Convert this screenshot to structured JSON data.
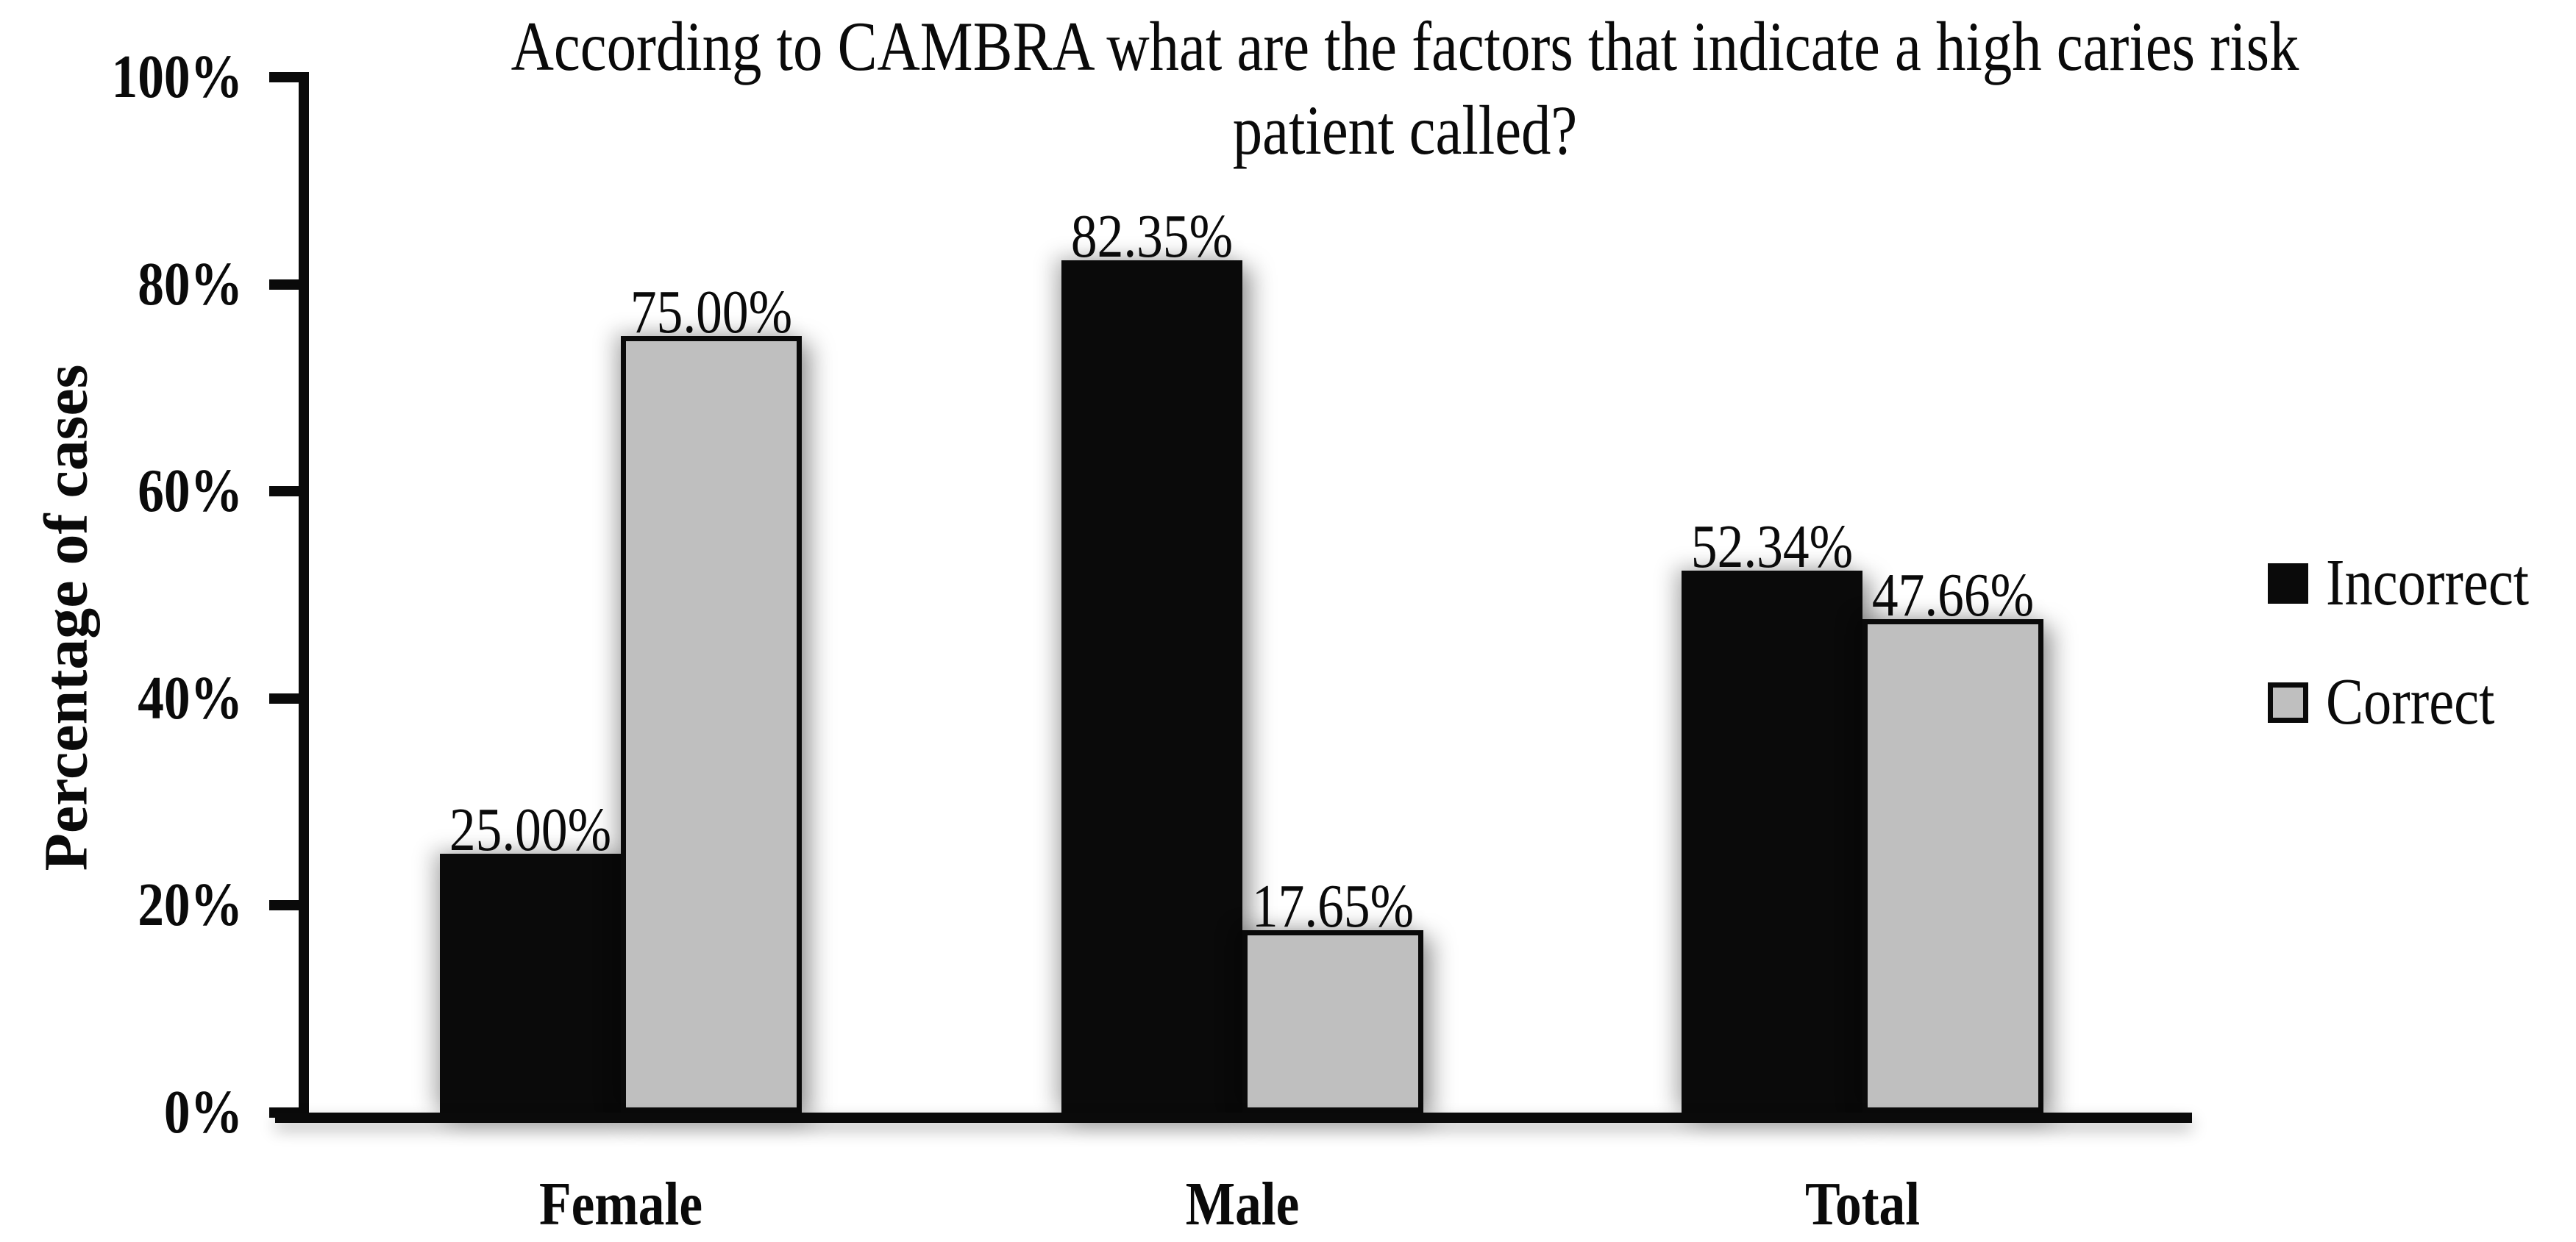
{
  "chart_data": {
    "type": "bar",
    "title": "According to CAMBRA what are the factors that indicate a high caries risk patient called?",
    "title_lines": [
      "According to CAMBRA what are the factors that indicate a high caries risk",
      "patient called?"
    ],
    "xlabel": "",
    "ylabel": "Percentage of cases",
    "categories": [
      "Female",
      "Male",
      "Total"
    ],
    "series": [
      {
        "name": "Incorrect",
        "color": "#0a0a0a",
        "values": [
          25.0,
          82.35,
          52.34
        ],
        "data_labels": [
          "25.00%",
          "82.35%",
          "52.34%"
        ]
      },
      {
        "name": "Correct",
        "color": "#bfbfbf",
        "values": [
          75.0,
          17.65,
          47.66
        ],
        "data_labels": [
          "75.00%",
          "17.65%",
          "47.66%"
        ]
      }
    ],
    "yticks": {
      "values": [
        0,
        20,
        40,
        60,
        80,
        100
      ],
      "labels": [
        "0%",
        "20%",
        "40%",
        "60%",
        "80%",
        "100%"
      ]
    },
    "ylim": [
      0,
      100
    ],
    "grid": false,
    "legend_position": "right",
    "colors": {
      "incorrect": "#0a0a0a",
      "correct_fill": "#bfbfbf",
      "axis": "#0a0a0a",
      "background": "#ffffff"
    }
  }
}
